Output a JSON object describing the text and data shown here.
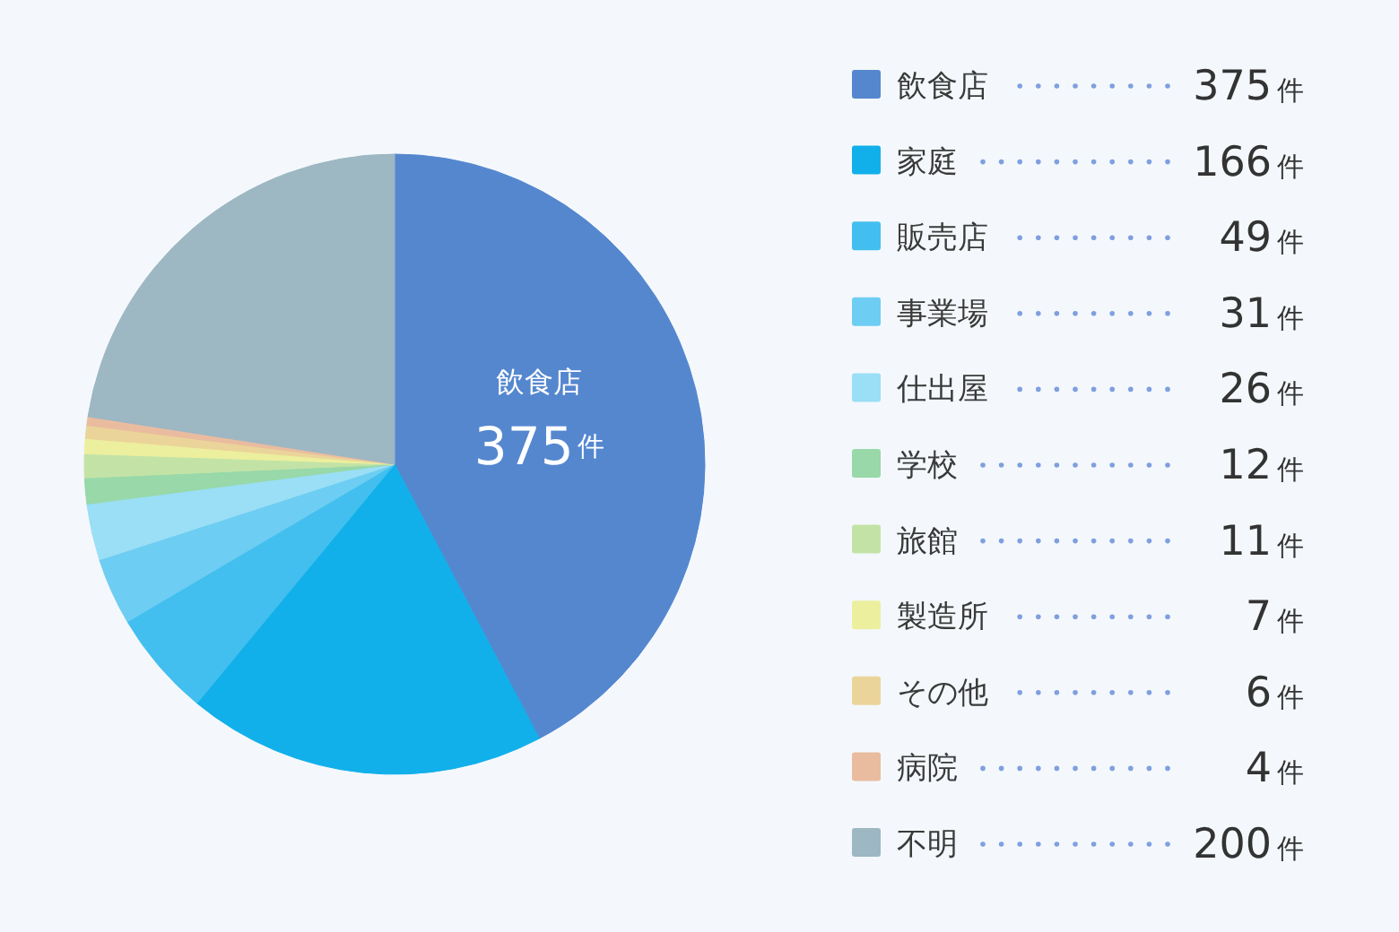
{
  "chart_data": {
    "type": "pie",
    "categories": [
      "飲食店",
      "家庭",
      "販売店",
      "事業場",
      "仕出屋",
      "学校",
      "旅館",
      "製造所",
      "その他",
      "病院",
      "不明"
    ],
    "values": [
      375,
      166,
      49,
      31,
      26,
      12,
      11,
      7,
      6,
      4,
      200
    ],
    "colors": [
      "#5587cf",
      "#12b0ea",
      "#42bfee",
      "#6ecdf2",
      "#9adff5",
      "#98d8a9",
      "#c3e3a6",
      "#ecef9e",
      "#ebd49a",
      "#eabc9f",
      "#9db7c3"
    ],
    "value_labels": [
      "375件",
      "166件",
      "49件",
      "31件",
      "26件",
      "12件",
      "11件",
      "7件",
      "6件",
      "4件",
      "200件"
    ],
    "legend": "right",
    "annotations": [
      {
        "text": "飲食店",
        "x": "飲食店"
      },
      {
        "text": "375件",
        "x": "飲食店"
      }
    ]
  }
}
